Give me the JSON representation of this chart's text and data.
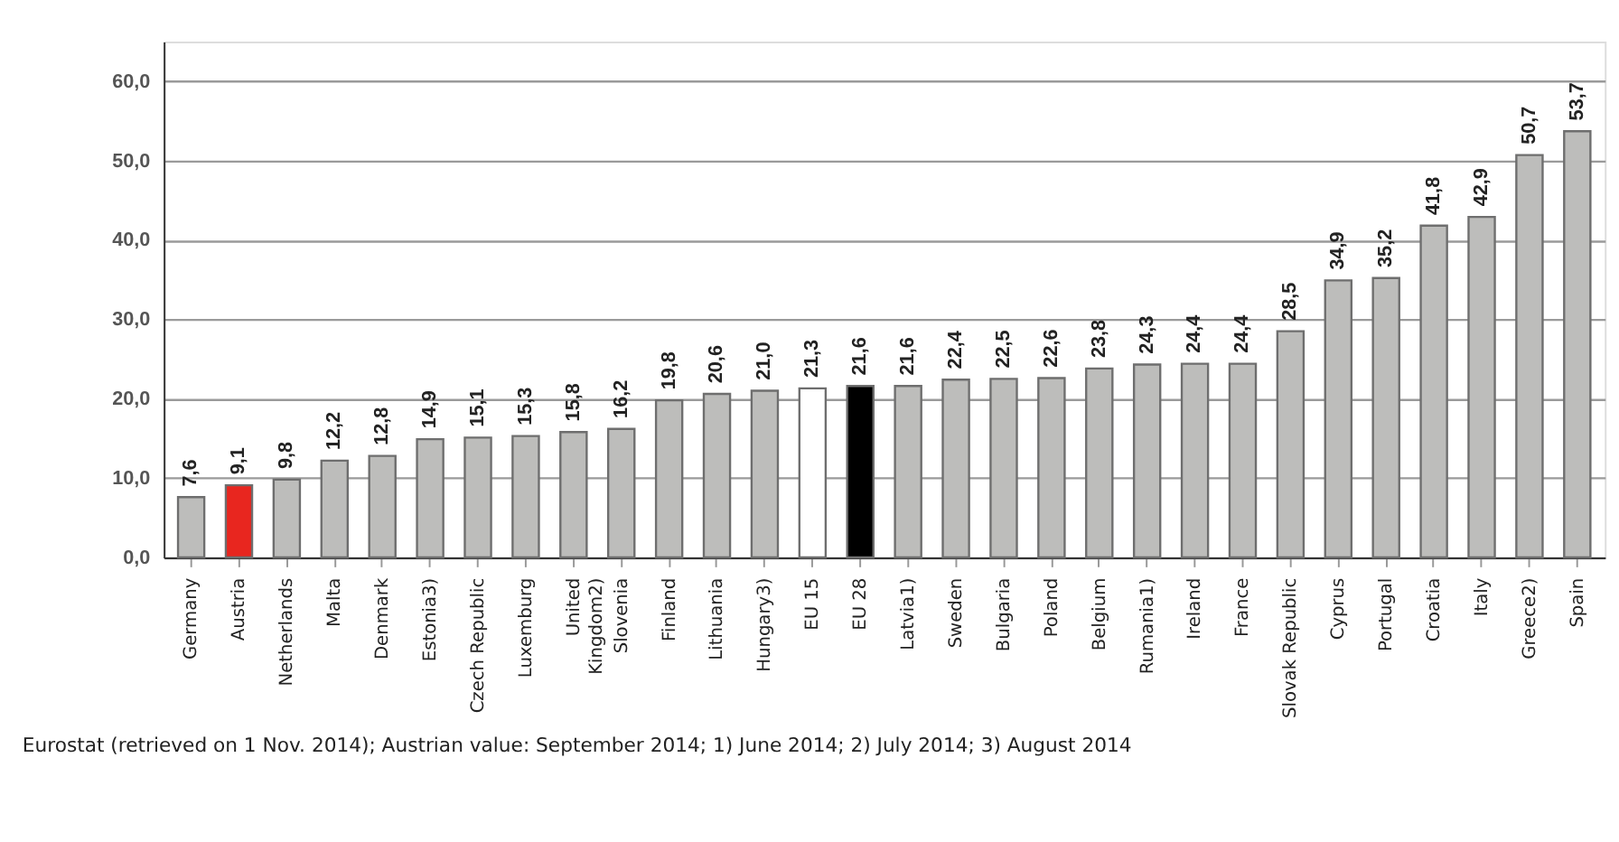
{
  "chart_data": {
    "type": "bar",
    "categories": [
      "Germany",
      "Austria",
      "Netherlands",
      "Malta",
      "Denmark",
      "Estonia3)",
      "Czech Republic",
      "Luxemburg",
      "United\nKingdom2)",
      "Slovenia",
      "Finland",
      "Lithuania",
      "Hungary3)",
      "EU 15",
      "EU 28",
      "Latvia1)",
      "Sweden",
      "Bulgaria",
      "Poland",
      "Belgium",
      "Rumania1)",
      "Ireland",
      "France",
      "Slovak Republic",
      "Cyprus",
      "Portugal",
      "Croatia",
      "Italy",
      "Greece2)",
      "Spain"
    ],
    "values": [
      7.6,
      9.1,
      9.8,
      12.2,
      12.8,
      14.9,
      15.1,
      15.3,
      15.8,
      16.2,
      19.8,
      20.6,
      21.0,
      21.3,
      21.6,
      21.6,
      22.4,
      22.5,
      22.6,
      23.8,
      24.3,
      24.4,
      24.4,
      28.5,
      34.9,
      35.2,
      41.8,
      42.9,
      50.7,
      53.7
    ],
    "value_labels": [
      "7,6",
      "9,1",
      "9,8",
      "12,2",
      "12,8",
      "14,9",
      "15,1",
      "15,3",
      "15,8",
      "16,2",
      "19,8",
      "20,6",
      "21,0",
      "21,3",
      "21,6",
      "21,6",
      "22,4",
      "22,5",
      "22,6",
      "23,8",
      "24,3",
      "24,4",
      "24,4",
      "28,5",
      "34,9",
      "35,2",
      "41,8",
      "42,9",
      "50,7",
      "53,7"
    ],
    "colors": [
      "#bdbdbb",
      "#e8261f",
      "#bdbdbb",
      "#bdbdbb",
      "#bdbdbb",
      "#bdbdbb",
      "#bdbdbb",
      "#bdbdbb",
      "#bdbdbb",
      "#bdbdbb",
      "#bdbdbb",
      "#bdbdbb",
      "#bdbdbb",
      "#ffffff",
      "#000000",
      "#bdbdbb",
      "#bdbdbb",
      "#bdbdbb",
      "#bdbdbb",
      "#bdbdbb",
      "#bdbdbb",
      "#bdbdbb",
      "#bdbdbb",
      "#bdbdbb",
      "#bdbdbb",
      "#bdbdbb",
      "#bdbdbb",
      "#bdbdbb",
      "#bdbdbb",
      "#bdbdbb"
    ],
    "ylim": [
      0,
      65
    ],
    "yticks": [
      {
        "value": 0,
        "label": "0,0"
      },
      {
        "value": 10,
        "label": "10,0"
      },
      {
        "value": 20,
        "label": "20,0"
      },
      {
        "value": 30,
        "label": "30,0"
      },
      {
        "value": 40,
        "label": "40,0"
      },
      {
        "value": 50,
        "label": "50,0"
      },
      {
        "value": 60,
        "label": "60,0"
      }
    ],
    "grid": "y",
    "annotations": [
      "Eurostat (retrieved on 1 Nov. 2014); Austrian value: September 2014; 1) June 2014; 2) July 2014; 3) August 2014"
    ]
  }
}
